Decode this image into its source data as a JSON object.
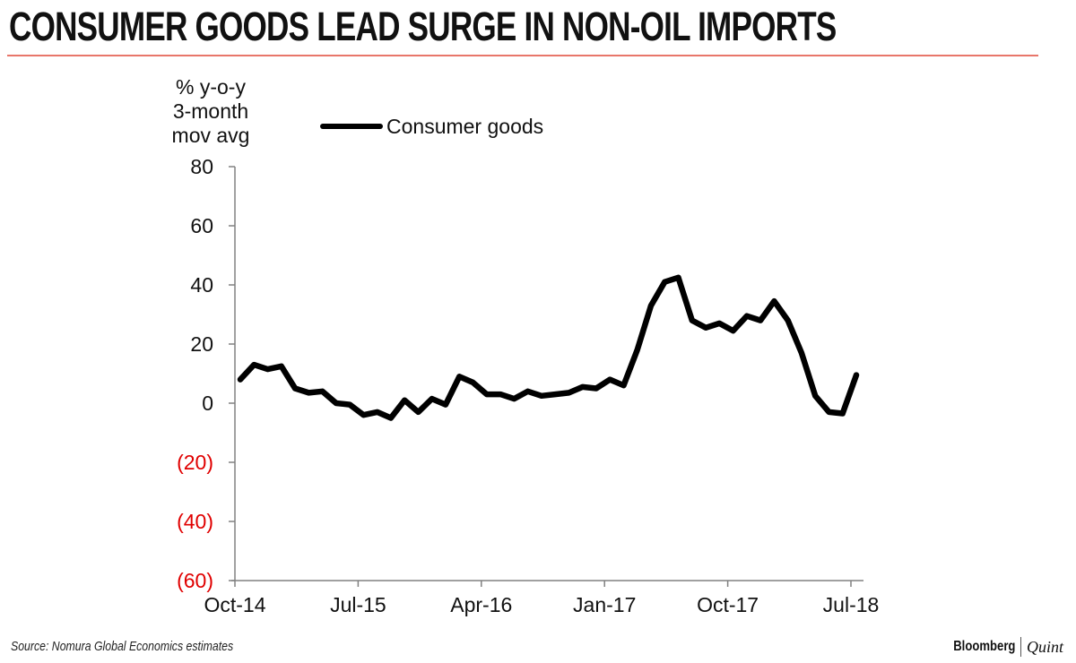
{
  "title": "CONSUMER GOODS LEAD SURGE IN NON-OIL IMPORTS",
  "footer": {
    "source": "Source: Nomura Global Economics estimates",
    "brand_primary": "Bloomberg",
    "brand_secondary": "Quint"
  },
  "colors": {
    "line": "#000000",
    "negative_tick": "#e00000",
    "rule": "#e8766a",
    "axis": "#808080"
  },
  "chart_data": {
    "type": "line",
    "title": "CONSUMER GOODS LEAD SURGE IN NON-OIL IMPORTS",
    "ylabel_lines": [
      "% y-o-y",
      "3-month",
      "mov avg"
    ],
    "xlabel": "",
    "ylim": [
      -60,
      80
    ],
    "yticks": [
      80,
      60,
      40,
      20,
      0,
      -20,
      -40,
      -60
    ],
    "ytick_labels": [
      "80",
      "60",
      "40",
      "20",
      "0",
      "(20)",
      "(40)",
      "(60)"
    ],
    "xtick_labels": [
      "Oct-14",
      "Jul-15",
      "Apr-16",
      "Jan-17",
      "Oct-17",
      "Jul-18"
    ],
    "grid": false,
    "legend": {
      "position": "top-left",
      "entries": [
        "Consumer goods"
      ]
    },
    "x": [
      "Oct-14",
      "Nov-14",
      "Dec-14",
      "Jan-15",
      "Feb-15",
      "Mar-15",
      "Apr-15",
      "May-15",
      "Jun-15",
      "Jul-15",
      "Aug-15",
      "Sep-15",
      "Oct-15",
      "Nov-15",
      "Dec-15",
      "Jan-16",
      "Feb-16",
      "Mar-16",
      "Apr-16",
      "May-16",
      "Jun-16",
      "Jul-16",
      "Aug-16",
      "Sep-16",
      "Oct-16",
      "Nov-16",
      "Dec-16",
      "Jan-17",
      "Feb-17",
      "Mar-17",
      "Apr-17",
      "May-17",
      "Jun-17",
      "Jul-17",
      "Aug-17",
      "Sep-17",
      "Oct-17",
      "Nov-17",
      "Dec-17",
      "Jan-18",
      "Feb-18",
      "Mar-18",
      "Apr-18",
      "May-18",
      "Jun-18",
      "Jul-18"
    ],
    "series": [
      {
        "name": "Consumer goods",
        "values": [
          8,
          13,
          11.5,
          12.5,
          5,
          3.5,
          4,
          0,
          -0.5,
          -4,
          -3,
          -5,
          1,
          -3,
          1.5,
          -0.5,
          9,
          7,
          3,
          3,
          1.5,
          4,
          2.5,
          3,
          3.5,
          5.5,
          5,
          8,
          6,
          18,
          33,
          41,
          42.5,
          28,
          25.5,
          27,
          24.5,
          29.5,
          28,
          34.5,
          28,
          17,
          2.5,
          -3,
          -3.5,
          9.5
        ]
      }
    ]
  }
}
